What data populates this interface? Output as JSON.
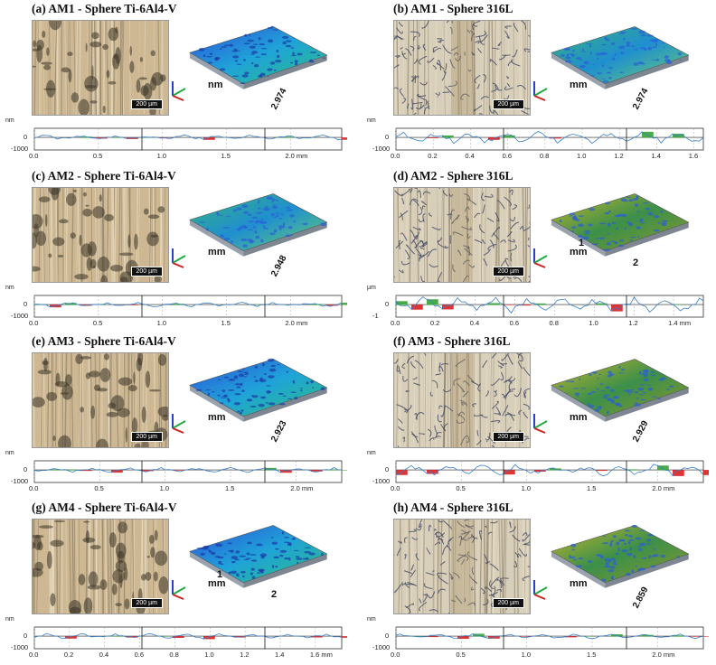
{
  "figure": {
    "panels": [
      {
        "id": "a",
        "title": "(a) AM1 - Sphere Ti-6Al4-V",
        "scale_bar": "200 µm",
        "surface_labels": [
          "nm",
          "2.974"
        ],
        "profile": {
          "y_unit": "nm",
          "y_ticks": [
            "0",
            "-1000"
          ],
          "x_ticks": [
            "0.0",
            "0.5",
            "1.0",
            "1.5",
            "2.0 mm"
          ],
          "x_tick_values": [
            0,
            0.5,
            1.0,
            1.5,
            2.0
          ],
          "x_max": 2.4
        },
        "material": "ti",
        "surface_color": "blue"
      },
      {
        "id": "b",
        "title": "(b) AM1 - Sphere 316L",
        "scale_bar": "200 µm",
        "surface_labels": [
          "mm",
          "2.974"
        ],
        "profile": {
          "y_unit": "nm",
          "y_ticks": [
            "0",
            "-1000"
          ],
          "x_ticks": [
            "0.0",
            "0.2",
            "0.4",
            "0.6",
            "0.8",
            "1.0",
            "1.2",
            "1.4",
            "1.6"
          ],
          "x_tick_values": [
            0,
            0.2,
            0.4,
            0.6,
            0.8,
            1.0,
            1.2,
            1.4,
            1.6
          ],
          "x_max": 1.65
        },
        "material": "ss",
        "surface_color": "green"
      },
      {
        "id": "c",
        "title": "(c) AM2 - Sphere Ti-6Al4-V",
        "scale_bar": "200 µm",
        "surface_labels": [
          "mm",
          "2.948"
        ],
        "profile": {
          "y_unit": "nm",
          "y_ticks": [
            "0",
            "-1000"
          ],
          "x_ticks": [
            "0.0",
            "0.5",
            "1.0",
            "1.5",
            "2.0 mm"
          ],
          "x_tick_values": [
            0,
            0.5,
            1.0,
            1.5,
            2.0
          ],
          "x_max": 2.4
        },
        "material": "ti",
        "surface_color": "green"
      },
      {
        "id": "d",
        "title": "(d) AM2 - Sphere 316L",
        "scale_bar": "200 µm",
        "surface_labels": [
          "mm",
          "1",
          "2"
        ],
        "profile": {
          "y_unit": "µm",
          "y_ticks": [
            "0",
            "-1"
          ],
          "x_ticks": [
            "0.0",
            "0.2",
            "0.4",
            "0.6",
            "0.8",
            "1.0",
            "1.2",
            "1.4 mm"
          ],
          "x_tick_values": [
            0,
            0.2,
            0.4,
            0.6,
            0.8,
            1.0,
            1.2,
            1.4
          ],
          "x_max": 1.55
        },
        "material": "ss",
        "surface_color": "yellow"
      },
      {
        "id": "e",
        "title": "(e) AM3 - Sphere Ti-6Al4-V",
        "scale_bar": "200 µm",
        "surface_labels": [
          "mm",
          "2.923"
        ],
        "profile": {
          "y_unit": "nm",
          "y_ticks": [
            "0",
            "-1000"
          ],
          "x_ticks": [
            "0.0",
            "0.5",
            "1.0",
            "1.5",
            "2.0 mm"
          ],
          "x_tick_values": [
            0,
            0.5,
            1.0,
            1.5,
            2.0
          ],
          "x_max": 2.35
        },
        "material": "ti",
        "surface_color": "blue"
      },
      {
        "id": "f",
        "title": "(f) AM3 - Sphere 316L",
        "scale_bar": "200 µm",
        "surface_labels": [
          "mm",
          "2.929"
        ],
        "profile": {
          "y_unit": "nm",
          "y_ticks": [
            "0",
            "-1000"
          ],
          "x_ticks": [
            "0.0",
            "0.5",
            "1.0",
            "1.5",
            "2.0 mm"
          ],
          "x_tick_values": [
            0,
            0.5,
            1.0,
            1.5,
            2.0
          ],
          "x_max": 2.35
        },
        "material": "ss",
        "surface_color": "yellow"
      },
      {
        "id": "g",
        "title": "(g) AM4 - Sphere Ti-6Al4-V",
        "scale_bar": "200 µm",
        "surface_labels": [
          "mm",
          "1",
          "2"
        ],
        "profile": {
          "y_unit": "nm",
          "y_ticks": [
            "0",
            "-1000"
          ],
          "x_ticks": [
            "0.0",
            "0.2",
            "0.4",
            "0.6",
            "0.8",
            "1.0",
            "1.2",
            "1.4",
            "1.6 mm"
          ],
          "x_tick_values": [
            0,
            0.2,
            0.4,
            0.6,
            0.8,
            1.0,
            1.2,
            1.4,
            1.6
          ],
          "x_max": 1.75
        },
        "material": "ti",
        "surface_color": "blue"
      },
      {
        "id": "h",
        "title": "(h) AM4 - Sphere 316L",
        "scale_bar": "200 µm",
        "surface_labels": [
          "mm",
          "2.859"
        ],
        "profile": {
          "y_unit": "nm",
          "y_ticks": [
            "0",
            "-1000"
          ],
          "x_ticks": [
            "0.0",
            "0.5",
            "1.0",
            "1.5",
            "2.0 mm"
          ],
          "x_tick_values": [
            0,
            0.5,
            1.0,
            1.5,
            2.0
          ],
          "x_max": 2.35
        },
        "material": "ss",
        "surface_color": "yellow"
      }
    ]
  }
}
